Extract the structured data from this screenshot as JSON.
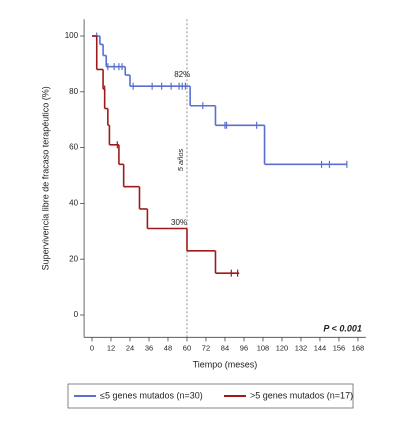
{
  "chart_data": {
    "type": "kaplan-meier",
    "y_label": "Supervivencia libre de fracaso terapéutico (%)",
    "x_label": "Tiempo (meses)",
    "xlim": [
      -5,
      173
    ],
    "ylim": [
      -8,
      106
    ],
    "xticks": [
      0,
      12,
      24,
      36,
      48,
      60,
      72,
      84,
      96,
      108,
      120,
      132,
      144,
      156,
      168
    ],
    "yticks": [
      0,
      20,
      40,
      60,
      80,
      100
    ],
    "reference_x": 60,
    "reference_label": "5 años",
    "annotations": [
      {
        "text": "82%",
        "x": 57,
        "y": 86
      },
      {
        "text": "30%",
        "x": 55,
        "y": 33
      }
    ],
    "p_value": "P < 0.001",
    "series": [
      {
        "name": "≤5 genes mutados (n=30)",
        "color": "#5a6fd0",
        "x": [
          0,
          5,
          7,
          9,
          21,
          24,
          62,
          78,
          109,
          161
        ],
        "values": [
          100,
          97,
          93,
          89,
          86,
          82,
          75,
          68,
          54,
          54
        ],
        "censored_x": [
          3,
          10,
          14,
          17,
          19,
          26,
          38,
          44,
          50,
          55,
          57,
          59,
          70,
          84,
          85,
          104,
          145,
          150,
          161
        ],
        "censored_values": [
          100,
          89,
          89,
          89,
          89,
          82,
          82,
          82,
          82,
          82,
          82,
          82,
          75,
          68,
          68,
          68,
          54,
          54,
          54
        ]
      },
      {
        "name": ">5 genes mutados (n=17)",
        "color": "#9e1b1b",
        "x": [
          0,
          3,
          7,
          8,
          10,
          11,
          17,
          20,
          30,
          35,
          60,
          78,
          93
        ],
        "values": [
          100,
          88,
          81,
          74,
          68,
          61,
          54,
          46,
          38,
          31,
          23,
          15,
          15
        ],
        "censored_x": [
          8,
          16,
          88,
          92
        ],
        "censored_values": [
          81,
          61,
          15,
          15
        ]
      }
    ]
  }
}
